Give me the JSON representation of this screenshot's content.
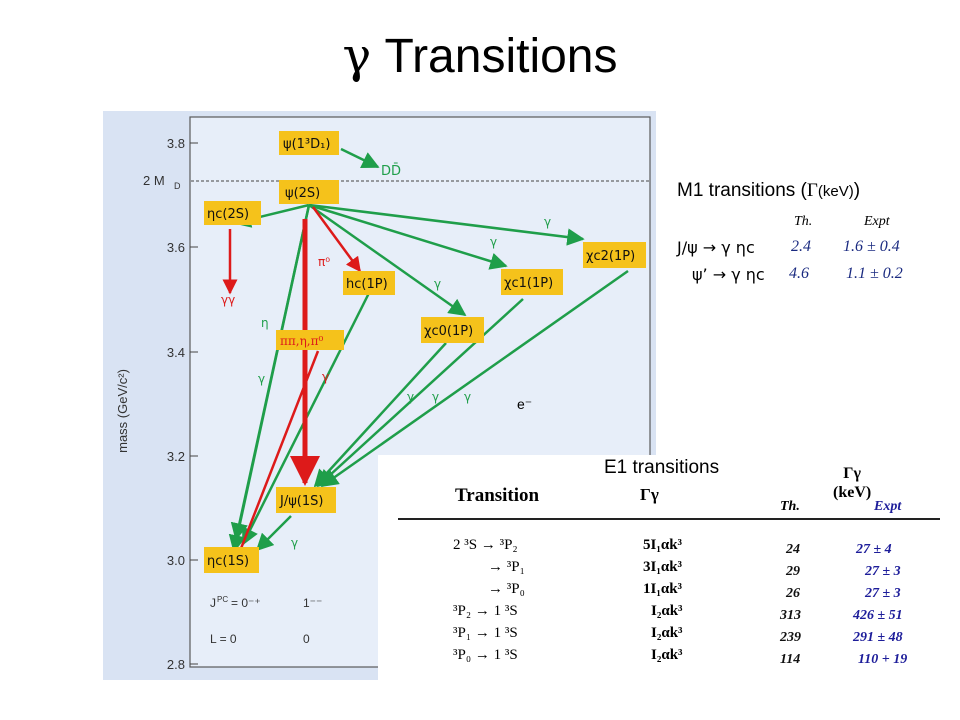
{
  "title": {
    "symbol": "γ",
    "text": " Transitions"
  },
  "diagram": {
    "y_axis_label": "mass (GeV/c²)",
    "y_ticks": [
      "3.8",
      "3.6",
      "3.4",
      "3.2",
      "3.0",
      "2.8"
    ],
    "threshold_label": "2 M",
    "threshold_sub": "D",
    "states": {
      "psi3770": "ψ(1³D₁)",
      "dd": "DD̄",
      "psi2s": "ψ(2S)",
      "etac2s": "ηc(2S)",
      "hc": "hc(1P)",
      "chic0": "χc0(1P)",
      "chic1": "χc1(1P)",
      "chic2": "χc2(1P)",
      "jpsi": "J/ψ(1S)",
      "etac1s": "ηc(1S)"
    },
    "labels": {
      "gg": "γγ",
      "pi0": "π⁰",
      "pipi": "ππ,η,π⁰",
      "eta": "η",
      "gamma": "γ"
    },
    "jpc_label": "J",
    "jpc_sup": "PC",
    "jpc_eq": " = 0⁻⁺",
    "jpc_2": "1⁻⁻",
    "l_label": "L = 0",
    "l_2": "0",
    "colors": {
      "box": "#f5c21b",
      "arrow_green": "#1f9e4a",
      "arrow_red": "#dd1a1a",
      "panel": "#d9e3f3"
    }
  },
  "m1": {
    "title_pre": "M1 transitions (",
    "title_sym": "Γ",
    "title_unit": "(keV)",
    "title_post": ")",
    "head_th": "Th.",
    "head_ex": "Expt",
    "rows": [
      {
        "label": "J/ψ → γ ηc",
        "th": "2.4",
        "ex": "1.6 ± 0.4"
      },
      {
        "label": "ψ’ → γ ηc",
        "th": "4.6",
        "ex": "1.1 ± 0.2"
      }
    ]
  },
  "e_minus": "e⁻",
  "e1": {
    "title": "E1 transitions",
    "hdr_transition": "Transition",
    "hdr_gamma": "Γγ",
    "hdr_gamma_unit": "Γγ\n(keV)",
    "hdr_th": "Th.",
    "hdr_ex": "Expt",
    "rows": [
      {
        "transition": "2 ³S → ³P₂",
        "formula": "5I₁αk³",
        "th": "24",
        "ex": "27 ± 4"
      },
      {
        "transition": "→ ³P₁",
        "formula": "3I₁αk³",
        "th": "29",
        "ex": "27 ± 3"
      },
      {
        "transition": "→ ³P₀",
        "formula": "1I₁αk³",
        "th": "26",
        "ex": "27 ± 3"
      },
      {
        "transition": "³P₂ → 1 ³S",
        "formula": "I₂αk³",
        "th": "313",
        "ex": "426 ± 51"
      },
      {
        "transition": "³P₁ → 1 ³S",
        "formula": "I₂αk³",
        "th": "239",
        "ex": "291 ± 48"
      },
      {
        "transition": "³P₀ → 1 ³S",
        "formula": "I₂αk³",
        "th": "114",
        "ex": "110 + 19"
      }
    ]
  }
}
